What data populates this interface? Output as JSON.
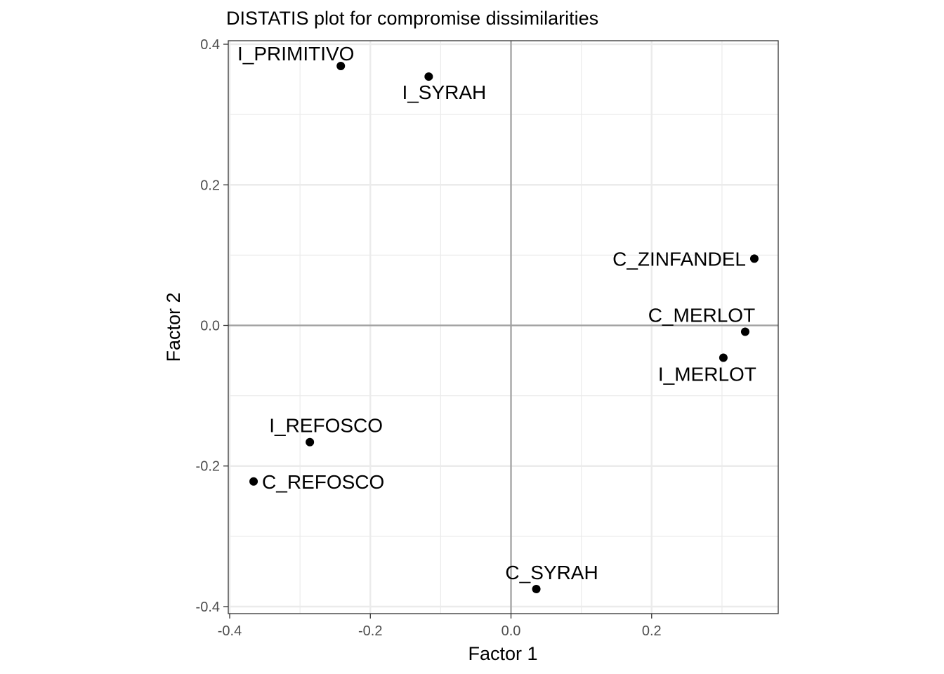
{
  "chart_data": {
    "type": "scatter",
    "title": "DISTATIS plot for compromise dissimilarities",
    "xlabel": "Factor 1",
    "ylabel": "Factor 2",
    "xlim": [
      -0.402,
      0.38
    ],
    "ylim": [
      -0.41,
      0.405
    ],
    "x_ticks": [
      -0.4,
      -0.2,
      0.0,
      0.2
    ],
    "y_ticks": [
      -0.4,
      -0.2,
      0.0,
      0.2,
      0.4
    ],
    "x_tick_labels": [
      "-0.4",
      "-0.2",
      "0.0",
      "0.2"
    ],
    "y_tick_labels": [
      "-0.4",
      "-0.2",
      "0.0",
      "0.2",
      "0.4"
    ],
    "grid": true,
    "zero_lines": true,
    "point_color": "#000000",
    "grid_major_color": "#ebebeb",
    "zero_line_color": "#a0a0a0",
    "points": [
      {
        "label": "I_PRIMITIVO",
        "x": -0.242,
        "y": 0.369
      },
      {
        "label": "I_SYRAH",
        "x": -0.117,
        "y": 0.354
      },
      {
        "label": "C_ZINFANDEL",
        "x": 0.346,
        "y": 0.095
      },
      {
        "label": "C_MERLOT",
        "x": 0.333,
        "y": -0.009
      },
      {
        "label": "I_MERLOT",
        "x": 0.302,
        "y": -0.046
      },
      {
        "label": "I_REFOSCO",
        "x": -0.286,
        "y": -0.166
      },
      {
        "label": "C_REFOSCO",
        "x": -0.366,
        "y": -0.222
      },
      {
        "label": "C_SYRAH",
        "x": 0.036,
        "y": -0.375
      }
    ]
  }
}
